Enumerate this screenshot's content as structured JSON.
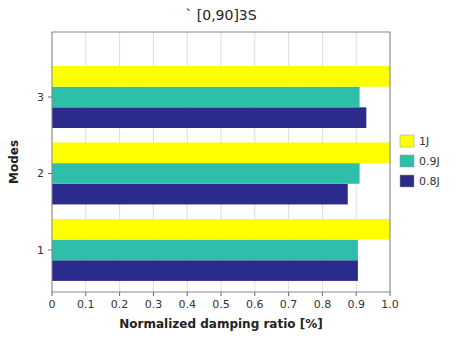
{
  "chart_data": {
    "type": "bar",
    "orientation": "horizontal",
    "title": "` [0,90]3S",
    "xlabel": "Normalized damping ratio [%]",
    "ylabel": "Modes",
    "categories": [
      1,
      2,
      3
    ],
    "series": [
      {
        "name": "0.8J",
        "color": "#2b2b8c",
        "values": [
          0.905,
          0.875,
          0.93
        ]
      },
      {
        "name": "0.9J",
        "color": "#2dbfaa",
        "values": [
          0.905,
          0.91,
          0.91
        ]
      },
      {
        "name": "1J",
        "color": "#ffff00",
        "values": [
          1.0,
          1.0,
          1.0
        ]
      }
    ],
    "xlim": [
      0,
      1.0
    ],
    "xticks": [
      0,
      0.1,
      0.2,
      0.3,
      0.4,
      0.5,
      0.6,
      0.7,
      0.8,
      0.9,
      {
        "value": 1.0,
        "label": "1.0"
      }
    ],
    "ylim": [
      0.45,
      3.85
    ],
    "grid": true,
    "legend": "right"
  }
}
